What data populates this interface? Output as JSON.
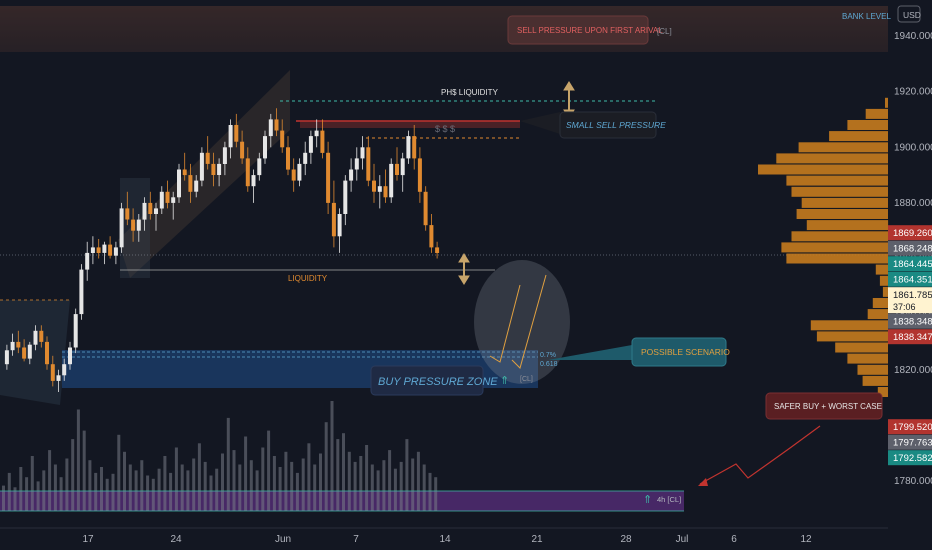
{
  "chart_data": {
    "type": "candlestick",
    "currency": "USD",
    "top_right_label": "BANK LEVEL",
    "y_ticks": [
      1940,
      1920,
      1900,
      1880,
      1860,
      1840,
      1820,
      1800,
      1780
    ],
    "y_tick_labels": [
      "1940.000",
      "1920.000",
      "1900.000",
      "1880.000",
      "1860.000",
      "1840.000",
      "1820.000",
      "1800.000",
      "1780.000"
    ],
    "ylim": [
      1756,
      1950
    ],
    "x_ticks": [
      "17",
      "24",
      "Jun",
      "7",
      "14",
      "21",
      "28",
      "Jul",
      "6",
      "12"
    ],
    "price_tags": [
      {
        "value": 1869.26,
        "label": "1869.260",
        "color": "#b2342f"
      },
      {
        "value": 1868.248,
        "label": "1868.248",
        "color": "#5d606b"
      },
      {
        "value": 1864.445,
        "label": "1864.445",
        "color": "#1a8a83"
      },
      {
        "value": 1864.351,
        "label": "1864.351",
        "color": "#1a8a83"
      },
      {
        "value": 1861.785,
        "label": "1861.785",
        "sublabel": "37:06",
        "color": "#fff3d0",
        "text_color": "#131722"
      },
      {
        "value": 1838.348,
        "label": "1838.348",
        "color": "#5d606b"
      },
      {
        "value": 1838.347,
        "label": "1838.347",
        "color": "#b2342f"
      },
      {
        "value": 1799.52,
        "label": "1799.520",
        "color": "#b2342f"
      },
      {
        "value": 1797.763,
        "label": "1797.763",
        "color": "#5d606b"
      },
      {
        "value": 1792.582,
        "label": "1792.582",
        "color": "#1a8a83"
      }
    ],
    "annotations": {
      "sell_pressure_first_arrival": "SELL PRESSURE UPON FIRST ARIVAL",
      "sell_tag": "[CL]",
      "phs_liquidity": "PH$ LIQUIDITY",
      "small_sell_pressure": "SMALL SELL PRESSURE",
      "dollars": "$ $ $",
      "liquidity": "LIQUIDITY",
      "possible_scenario": "POSSIBLE SCENARIO",
      "buy_pressure_zone": "BUY PRESSURE ZONE",
      "buy_tag": "[CL]",
      "fib_a": "0.7%",
      "fib_b": "0.618",
      "safer_buy": "SAFER BUY + WORST CASE",
      "bottom_tag": "4h [CL]"
    },
    "volume_profile_levels": [
      {
        "price": 1916,
        "size": 3
      },
      {
        "price": 1912,
        "size": 22
      },
      {
        "price": 1908,
        "size": 40
      },
      {
        "price": 1904,
        "size": 58
      },
      {
        "price": 1900,
        "size": 88
      },
      {
        "price": 1896,
        "size": 110
      },
      {
        "price": 1892,
        "size": 128
      },
      {
        "price": 1888,
        "size": 100
      },
      {
        "price": 1884,
        "size": 95
      },
      {
        "price": 1880,
        "size": 85
      },
      {
        "price": 1876,
        "size": 90
      },
      {
        "price": 1872,
        "size": 80
      },
      {
        "price": 1868,
        "size": 95
      },
      {
        "price": 1864,
        "size": 105
      },
      {
        "price": 1860,
        "size": 100
      },
      {
        "price": 1856,
        "size": 12
      },
      {
        "price": 1852,
        "size": 8
      },
      {
        "price": 1848,
        "size": 5
      },
      {
        "price": 1844,
        "size": 15
      },
      {
        "price": 1840,
        "size": 20
      },
      {
        "price": 1836,
        "size": 76
      },
      {
        "price": 1832,
        "size": 70
      },
      {
        "price": 1828,
        "size": 52
      },
      {
        "price": 1824,
        "size": 40
      },
      {
        "price": 1820,
        "size": 30
      },
      {
        "price": 1816,
        "size": 25
      },
      {
        "price": 1812,
        "size": 10
      }
    ],
    "candles": [
      [
        1822,
        1829,
        1820,
        1827
      ],
      [
        1827,
        1833,
        1825,
        1830
      ],
      [
        1830,
        1834,
        1826,
        1828
      ],
      [
        1828,
        1831,
        1823,
        1824
      ],
      [
        1824,
        1830,
        1822,
        1829
      ],
      [
        1829,
        1836,
        1827,
        1834
      ],
      [
        1834,
        1836,
        1828,
        1830
      ],
      [
        1830,
        1832,
        1820,
        1822
      ],
      [
        1822,
        1825,
        1814,
        1816
      ],
      [
        1816,
        1820,
        1812,
        1818
      ],
      [
        1818,
        1824,
        1816,
        1822
      ],
      [
        1822,
        1830,
        1820,
        1828
      ],
      [
        1828,
        1842,
        1826,
        1840
      ],
      [
        1840,
        1858,
        1838,
        1856
      ],
      [
        1856,
        1866,
        1852,
        1862
      ],
      [
        1862,
        1868,
        1858,
        1864
      ],
      [
        1864,
        1867,
        1860,
        1862
      ],
      [
        1862,
        1866,
        1858,
        1865
      ],
      [
        1865,
        1868,
        1860,
        1861
      ],
      [
        1861,
        1866,
        1858,
        1864
      ],
      [
        1864,
        1880,
        1862,
        1878
      ],
      [
        1878,
        1884,
        1872,
        1874
      ],
      [
        1874,
        1878,
        1866,
        1870
      ],
      [
        1870,
        1876,
        1866,
        1874
      ],
      [
        1874,
        1882,
        1870,
        1880
      ],
      [
        1880,
        1884,
        1874,
        1876
      ],
      [
        1876,
        1880,
        1870,
        1878
      ],
      [
        1878,
        1886,
        1876,
        1884
      ],
      [
        1884,
        1888,
        1878,
        1880
      ],
      [
        1880,
        1884,
        1874,
        1882
      ],
      [
        1882,
        1894,
        1880,
        1892
      ],
      [
        1892,
        1898,
        1888,
        1890
      ],
      [
        1890,
        1894,
        1880,
        1884
      ],
      [
        1884,
        1890,
        1882,
        1888
      ],
      [
        1888,
        1900,
        1886,
        1898
      ],
      [
        1898,
        1904,
        1892,
        1894
      ],
      [
        1894,
        1898,
        1886,
        1890
      ],
      [
        1890,
        1896,
        1886,
        1894
      ],
      [
        1894,
        1902,
        1890,
        1900
      ],
      [
        1900,
        1910,
        1896,
        1908
      ],
      [
        1908,
        1912,
        1900,
        1902
      ],
      [
        1902,
        1906,
        1894,
        1896
      ],
      [
        1896,
        1900,
        1884,
        1886
      ],
      [
        1886,
        1892,
        1880,
        1890
      ],
      [
        1890,
        1898,
        1888,
        1896
      ],
      [
        1896,
        1906,
        1894,
        1904
      ],
      [
        1904,
        1912,
        1900,
        1910
      ],
      [
        1910,
        1914,
        1904,
        1906
      ],
      [
        1906,
        1910,
        1898,
        1900
      ],
      [
        1900,
        1904,
        1890,
        1892
      ],
      [
        1892,
        1896,
        1884,
        1888
      ],
      [
        1888,
        1896,
        1886,
        1894
      ],
      [
        1894,
        1902,
        1890,
        1898
      ],
      [
        1898,
        1906,
        1894,
        1904
      ],
      [
        1904,
        1910,
        1900,
        1906
      ],
      [
        1906,
        1910,
        1896,
        1898
      ],
      [
        1898,
        1902,
        1876,
        1880
      ],
      [
        1880,
        1888,
        1864,
        1868
      ],
      [
        1868,
        1878,
        1862,
        1876
      ],
      [
        1876,
        1890,
        1872,
        1888
      ],
      [
        1888,
        1896,
        1884,
        1892
      ],
      [
        1892,
        1900,
        1888,
        1896
      ],
      [
        1896,
        1904,
        1892,
        1900
      ],
      [
        1900,
        1904,
        1886,
        1888
      ],
      [
        1888,
        1894,
        1880,
        1884
      ],
      [
        1884,
        1890,
        1878,
        1886
      ],
      [
        1886,
        1892,
        1880,
        1882
      ],
      [
        1882,
        1896,
        1880,
        1894
      ],
      [
        1894,
        1900,
        1888,
        1890
      ],
      [
        1890,
        1898,
        1884,
        1896
      ],
      [
        1896,
        1906,
        1894,
        1904
      ],
      [
        1904,
        1908,
        1892,
        1896
      ],
      [
        1896,
        1900,
        1880,
        1884
      ],
      [
        1884,
        1886,
        1870,
        1872
      ],
      [
        1872,
        1876,
        1862,
        1864
      ],
      [
        1864,
        1866,
        1860,
        1862
      ]
    ],
    "volumes": [
      30,
      45,
      28,
      52,
      40,
      65,
      35,
      48,
      72,
      55,
      40,
      62,
      85,
      120,
      95,
      60,
      45,
      52,
      38,
      44,
      90,
      70,
      55,
      48,
      60,
      42,
      38,
      50,
      65,
      45,
      75,
      55,
      48,
      62,
      80,
      58,
      42,
      50,
      68,
      110,
      72,
      55,
      88,
      60,
      48,
      75,
      95,
      65,
      52,
      70,
      58,
      45,
      62,
      80,
      55,
      68,
      105,
      130,
      85,
      92,
      70,
      58,
      65,
      78,
      55,
      48,
      60,
      72,
      50,
      58,
      85,
      62,
      70,
      55,
      45,
      40
    ]
  }
}
